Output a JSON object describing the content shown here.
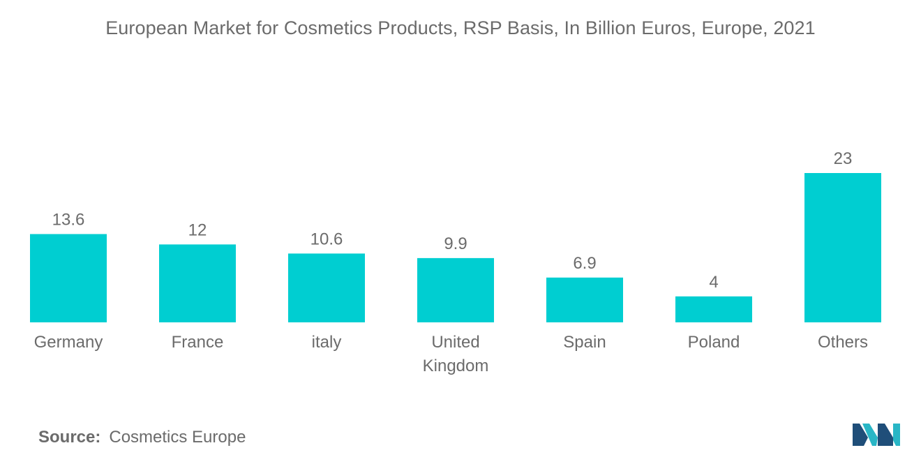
{
  "chart_data": {
    "type": "bar",
    "title": "European Market for Cosmetics Products, RSP Basis, In Billion Euros, Europe, 2021",
    "categories": [
      [
        "Germany"
      ],
      [
        "France"
      ],
      [
        "italy"
      ],
      [
        "United",
        "Kingdom"
      ],
      [
        "Spain"
      ],
      [
        "Poland"
      ],
      [
        "Others"
      ]
    ],
    "values": [
      13.6,
      12,
      10.6,
      9.9,
      6.9,
      4,
      23
    ],
    "value_labels": [
      "13.6",
      "12",
      "10.6",
      "9.9",
      "6.9",
      "4",
      "23"
    ],
    "bar_color": "#00ced1",
    "ylim": [
      0,
      23
    ],
    "grid": false,
    "xlabel": "",
    "ylabel": ""
  },
  "source": {
    "label": "Source:",
    "text": "Cosmetics Europe"
  },
  "colors": {
    "text": "#6b6b6b",
    "logo_dark": "#1f4e79",
    "logo_light": "#29b6c6"
  },
  "logo": {
    "icon": "mordor-intelligence-logo-icon"
  }
}
